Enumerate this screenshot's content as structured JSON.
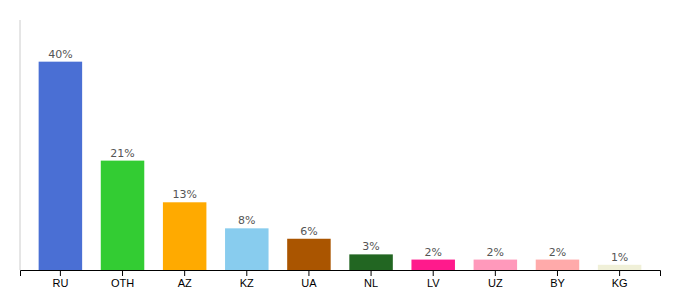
{
  "chart_data": {
    "type": "bar",
    "categories": [
      "RU",
      "OTH",
      "AZ",
      "KZ",
      "UA",
      "NL",
      "LV",
      "UZ",
      "BY",
      "KG"
    ],
    "values": [
      40,
      21,
      13,
      8,
      6,
      3,
      2,
      2,
      2,
      1
    ],
    "value_labels": [
      "40%",
      "21%",
      "13%",
      "8%",
      "6%",
      "3%",
      "2%",
      "2%",
      "2%",
      "1%"
    ],
    "colors": [
      "#4a6fd4",
      "#33cc33",
      "#ffaa00",
      "#88ccee",
      "#aa5500",
      "#226622",
      "#ff1a8c",
      "#ff99bb",
      "#ffaaaa",
      "#f0f0d8"
    ],
    "ylim": [
      0,
      48
    ],
    "data_labels": true,
    "tick_labels": "x"
  }
}
